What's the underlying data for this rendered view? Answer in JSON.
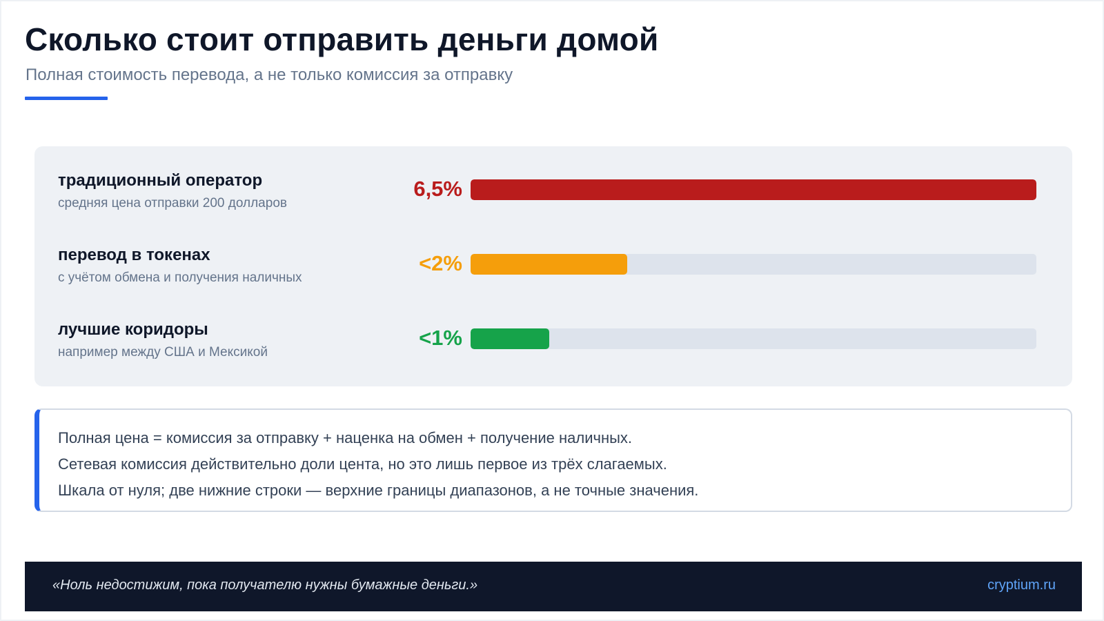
{
  "header": {
    "title": "Сколько стоит отправить деньги домой",
    "subtitle": "Полная стоимость перевода, а не только комиссия за отправку"
  },
  "chart_data": {
    "type": "bar",
    "orientation": "horizontal",
    "scale_min": 0,
    "scale_max": 6.5,
    "categories": [
      "традиционный оператор",
      "перевод в токенах",
      "лучшие коридоры"
    ],
    "descriptions": [
      "средняя цена отправки 200 долларов",
      "с учётом обмена и получения наличных",
      "например между США и Мексикой"
    ],
    "value_labels": [
      "6,5%",
      "<2%",
      "<1%"
    ],
    "values": [
      6.5,
      1.8,
      0.9
    ],
    "colors": [
      "#b91c1c",
      "#f59e0b",
      "#16a34a"
    ]
  },
  "note": {
    "lines": [
      "Полная цена = комиссия за отправку + наценка на обмен + получение наличных.",
      "Сетевая комиссия действительно доли цента, но это лишь первое из трёх слагаемых.",
      "Шкала от нуля; две нижние строки — верхние границы диапазонов, а не точные значения."
    ]
  },
  "footer": {
    "quote": "«Ноль недостижим, пока получателю нужны бумажные деньги.»",
    "site": "cryptium.ru"
  },
  "colors": {
    "accent": "#2563eb",
    "footer_bg": "#0f172a",
    "track": "#dde3ec"
  }
}
